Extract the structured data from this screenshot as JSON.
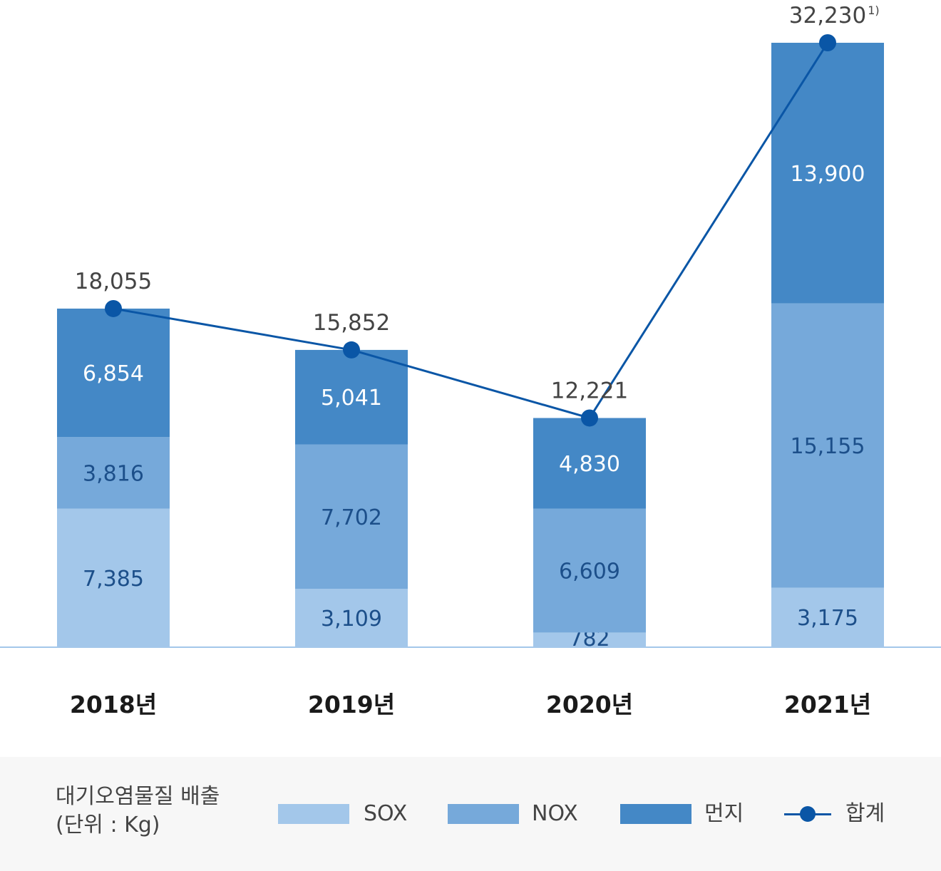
{
  "chart_data": {
    "type": "bar",
    "stacked": true,
    "categories": [
      "2018년",
      "2019년",
      "2020년",
      "2021년"
    ],
    "series": [
      {
        "name": "SOX",
        "values": [
          7385,
          3109,
          782,
          3175
        ],
        "color": "#a3c7ea",
        "label_color": "#1c4f8a"
      },
      {
        "name": "NOX",
        "values": [
          3816,
          7702,
          6609,
          15155
        ],
        "color": "#76a9da",
        "label_color": "#1c4f8a"
      },
      {
        "name": "먼지",
        "values": [
          6854,
          5041,
          4830,
          13900
        ],
        "color": "#4488c6",
        "label_color": "#ffffff"
      }
    ],
    "line": {
      "name": "합계",
      "values": [
        18055,
        15852,
        12221,
        32230
      ],
      "labels": [
        "18,055",
        "15,852",
        "12,221",
        "32,230"
      ],
      "footnote": [
        "",
        "",
        "",
        "1)"
      ],
      "color": "#0a56a6"
    },
    "bar_labels": [
      [
        "7,385",
        "3,109",
        "782",
        "3,175"
      ],
      [
        "3,816",
        "7,702",
        "6,609",
        "15,155"
      ],
      [
        "6,854",
        "5,041",
        "4,830",
        "13,900"
      ]
    ],
    "ylim": [
      0,
      32230
    ],
    "grid": false,
    "legend_position": "bottom"
  },
  "legend": {
    "title_line1": "대기오염물질 배출",
    "title_line2": "(단위 : Kg)",
    "items": [
      "SOX",
      "NOX",
      "먼지",
      "합계"
    ]
  }
}
